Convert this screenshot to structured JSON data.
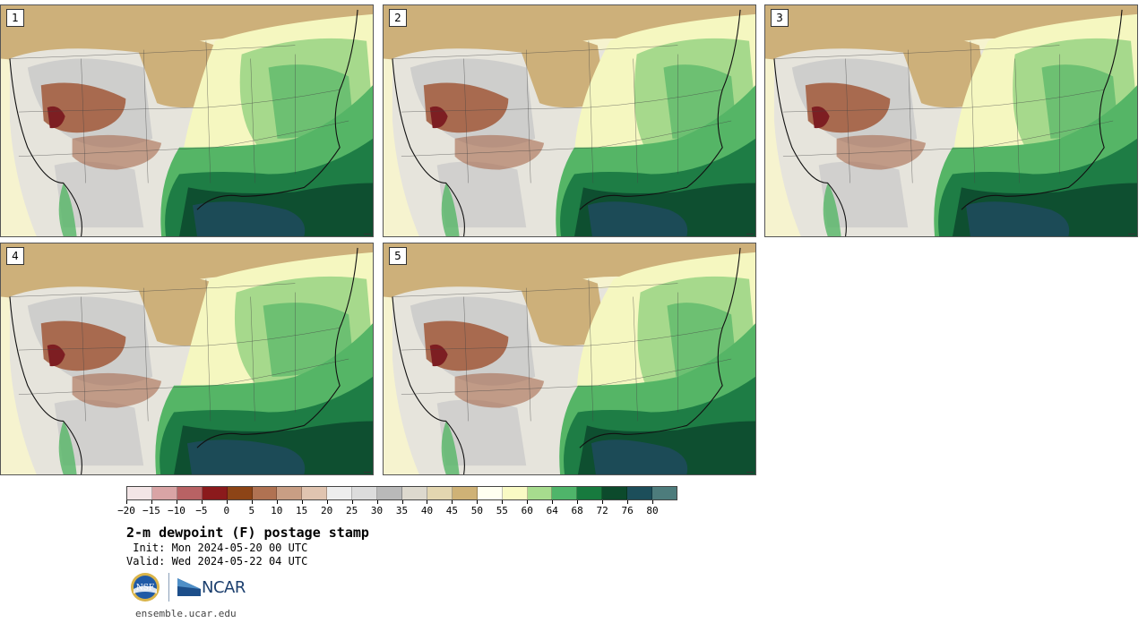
{
  "panels": [
    {
      "number": "1"
    },
    {
      "number": "2"
    },
    {
      "number": "3"
    },
    {
      "number": "4"
    },
    {
      "number": "5"
    }
  ],
  "colorbar": {
    "colors": [
      "#f3e5e6",
      "#d9a4a5",
      "#b86264",
      "#8b1a1c",
      "#8d4416",
      "#b07252",
      "#c89e84",
      "#e0c4b0",
      "#ededed",
      "#dcdcdc",
      "#b9b9b9",
      "#ddd9ce",
      "#e3d6b0",
      "#cfb276",
      "#fffff0",
      "#f9fac4",
      "#a7dc8e",
      "#4fb56a",
      "#177a3e",
      "#0c4a2c",
      "#1c4e5a",
      "#4d7c7c"
    ],
    "tick_labels": [
      "−20",
      "−15",
      "−10",
      "−5",
      "0",
      "5",
      "10",
      "15",
      "20",
      "25",
      "30",
      "35",
      "40",
      "45",
      "50",
      "55",
      "60",
      "64",
      "68",
      "72",
      "76",
      "80"
    ]
  },
  "title": "2-m dewpoint (F) postage stamp",
  "init": " Init: Mon 2024-05-20 00 UTC",
  "valid": "Valid: Wed 2024-05-22 04 UTC",
  "logos": {
    "nsf": "NSF",
    "ncar": "NCAR"
  },
  "site": "ensemble.ucar.edu",
  "map_colors": {
    "ocean_far": "#f6f3cf",
    "land_dry": "#cdb07a",
    "land_gray": "#c8c8c8",
    "land_light": "#e6e4dc",
    "brown": "#a86a4f",
    "dark_red": "#7d1e22",
    "light_yellow": "#f5f7c0",
    "light_green": "#a6d98c",
    "mid_green": "#55b566",
    "green": "#1e7d45",
    "dark_green": "#0e4f30",
    "gulf": "#1c4b57"
  }
}
